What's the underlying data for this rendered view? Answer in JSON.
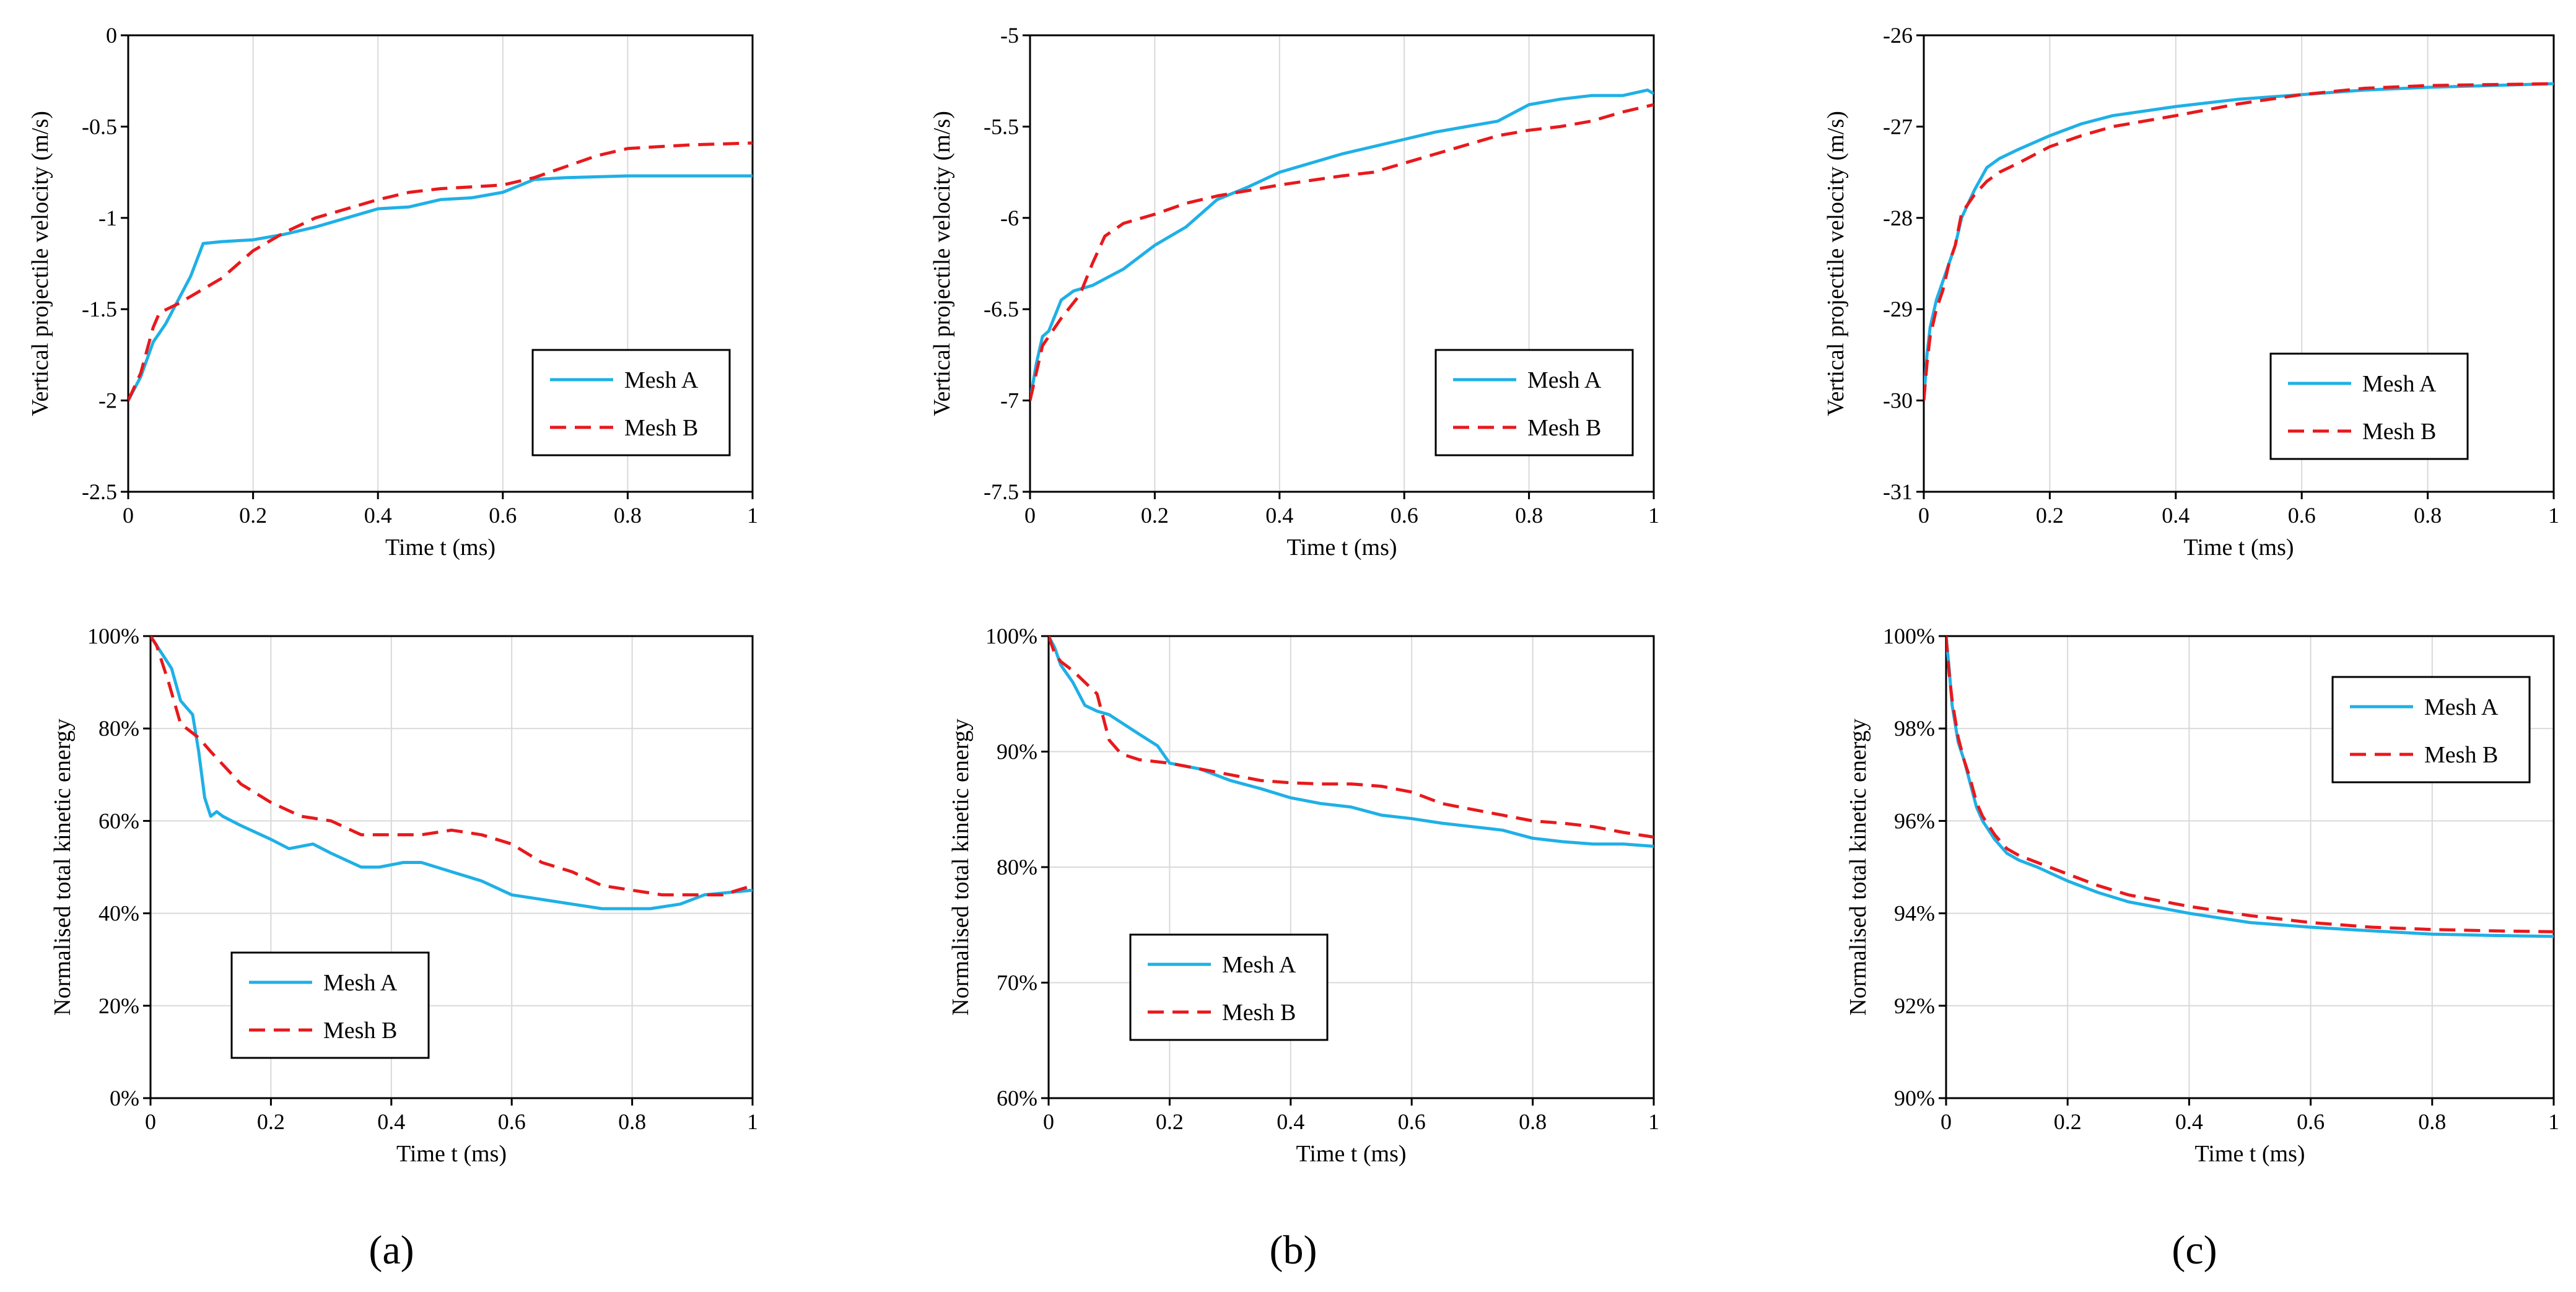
{
  "figure": {
    "panel_labels": [
      "(a)",
      "(b)",
      "(c)"
    ],
    "colors": {
      "mesh_a": "#1fb0e6",
      "mesh_b": "#e8191c",
      "grid": "#d9d9d9",
      "axis": "#000000"
    }
  },
  "chart_data": [
    {
      "id": "a-top",
      "type": "line",
      "xlabel": "Time t (ms)",
      "ylabel": "Vertical projectile velocity (m/s)",
      "xlim": [
        0,
        1
      ],
      "ylim": [
        -2.5,
        0
      ],
      "xticks": [
        0,
        0.2,
        0.4,
        0.6,
        0.8,
        1
      ],
      "xtick_labels": [
        "0",
        "0.2",
        "0.4",
        "0.6",
        "0.8",
        "1"
      ],
      "yticks": [
        0,
        -0.5,
        -1,
        -1.5,
        -2,
        -2.5
      ],
      "ytick_labels": [
        "0",
        "-0.5",
        "-1",
        "-1.5",
        "-2",
        "-2.5"
      ],
      "grid": "vertical",
      "legend_position": "bottom-right",
      "series": [
        {
          "name": "Mesh A",
          "style": "solid",
          "x": [
            0,
            0.02,
            0.04,
            0.06,
            0.08,
            0.1,
            0.12,
            0.15,
            0.2,
            0.25,
            0.3,
            0.35,
            0.4,
            0.45,
            0.5,
            0.55,
            0.6,
            0.65,
            0.7,
            0.8,
            0.9,
            1
          ],
          "y": [
            -2,
            -1.87,
            -1.68,
            -1.58,
            -1.45,
            -1.32,
            -1.14,
            -1.13,
            -1.12,
            -1.09,
            -1.05,
            -1,
            -0.95,
            -0.94,
            -0.9,
            -0.89,
            -0.86,
            -0.79,
            -0.78,
            -0.77,
            -0.77,
            -0.77
          ]
        },
        {
          "name": "Mesh B",
          "style": "dashed",
          "x": [
            0,
            0.02,
            0.04,
            0.05,
            0.08,
            0.1,
            0.15,
            0.2,
            0.25,
            0.3,
            0.35,
            0.4,
            0.45,
            0.5,
            0.55,
            0.6,
            0.65,
            0.7,
            0.75,
            0.8,
            0.85,
            0.9,
            1
          ],
          "y": [
            -2,
            -1.85,
            -1.6,
            -1.52,
            -1.47,
            -1.43,
            -1.33,
            -1.18,
            -1.08,
            -1,
            -0.95,
            -0.9,
            -0.86,
            -0.84,
            -0.83,
            -0.82,
            -0.78,
            -0.72,
            -0.66,
            -0.62,
            -0.61,
            -0.6,
            -0.59
          ]
        }
      ]
    },
    {
      "id": "b-top",
      "type": "line",
      "xlabel": "Time t (ms)",
      "ylabel": "Vertical projectile velocity (m/s)",
      "xlim": [
        0,
        1
      ],
      "ylim": [
        -7.5,
        -5
      ],
      "xticks": [
        0,
        0.2,
        0.4,
        0.6,
        0.8,
        1
      ],
      "xtick_labels": [
        "0",
        "0.2",
        "0.4",
        "0.6",
        "0.8",
        "1"
      ],
      "yticks": [
        -5,
        -5.5,
        -6,
        -6.5,
        -7,
        -7.5
      ],
      "ytick_labels": [
        "-5",
        "-5.5",
        "-6",
        "-6.5",
        "-7",
        "-7.5"
      ],
      "grid": "vertical",
      "legend_position": "bottom-right",
      "series": [
        {
          "name": "Mesh A",
          "style": "solid",
          "x": [
            0,
            0.01,
            0.02,
            0.03,
            0.05,
            0.07,
            0.1,
            0.15,
            0.2,
            0.25,
            0.3,
            0.35,
            0.4,
            0.5,
            0.6,
            0.65,
            0.7,
            0.75,
            0.8,
            0.85,
            0.9,
            0.95,
            0.99,
            1
          ],
          "y": [
            -7,
            -6.8,
            -6.65,
            -6.62,
            -6.45,
            -6.4,
            -6.37,
            -6.28,
            -6.15,
            -6.05,
            -5.9,
            -5.83,
            -5.75,
            -5.65,
            -5.57,
            -5.53,
            -5.5,
            -5.47,
            -5.38,
            -5.35,
            -5.33,
            -5.33,
            -5.3,
            -5.32
          ]
        },
        {
          "name": "Mesh B",
          "style": "dashed",
          "x": [
            0,
            0.02,
            0.03,
            0.05,
            0.08,
            0.1,
            0.12,
            0.15,
            0.2,
            0.25,
            0.3,
            0.35,
            0.4,
            0.5,
            0.55,
            0.6,
            0.65,
            0.7,
            0.75,
            0.8,
            0.85,
            0.9,
            0.95,
            1
          ],
          "y": [
            -7,
            -6.7,
            -6.65,
            -6.55,
            -6.42,
            -6.25,
            -6.1,
            -6.03,
            -5.98,
            -5.92,
            -5.88,
            -5.85,
            -5.82,
            -5.77,
            -5.75,
            -5.7,
            -5.65,
            -5.6,
            -5.55,
            -5.52,
            -5.5,
            -5.47,
            -5.42,
            -5.38
          ]
        }
      ]
    },
    {
      "id": "c-top",
      "type": "line",
      "xlabel": "Time t (ms)",
      "ylabel": "Vertical projectile velocity (m/s)",
      "xlim": [
        0,
        1
      ],
      "ylim": [
        -31,
        -26
      ],
      "xticks": [
        0,
        0.2,
        0.4,
        0.6,
        0.8,
        1
      ],
      "xtick_labels": [
        "0",
        "0.2",
        "0.4",
        "0.6",
        "0.8",
        "1"
      ],
      "yticks": [
        -26,
        -27,
        -28,
        -29,
        -30,
        -31
      ],
      "ytick_labels": [
        "-26",
        "-27",
        "-28",
        "-29",
        "-30",
        "-31"
      ],
      "grid": "vertical",
      "legend_position": "bottom-right",
      "series": [
        {
          "name": "Mesh A",
          "style": "solid",
          "x": [
            0,
            0.005,
            0.01,
            0.02,
            0.03,
            0.04,
            0.05,
            0.06,
            0.08,
            0.1,
            0.12,
            0.15,
            0.2,
            0.25,
            0.3,
            0.4,
            0.5,
            0.6,
            0.7,
            0.8,
            0.9,
            1
          ],
          "y": [
            -30,
            -29.5,
            -29.2,
            -28.9,
            -28.7,
            -28.5,
            -28.3,
            -28.0,
            -27.7,
            -27.45,
            -27.35,
            -27.25,
            -27.1,
            -26.97,
            -26.88,
            -26.78,
            -26.7,
            -26.65,
            -26.6,
            -26.57,
            -26.55,
            -26.53
          ]
        },
        {
          "name": "Mesh B",
          "style": "dashed",
          "x": [
            0,
            0.005,
            0.01,
            0.02,
            0.03,
            0.04,
            0.05,
            0.06,
            0.08,
            0.1,
            0.12,
            0.15,
            0.2,
            0.25,
            0.3,
            0.4,
            0.5,
            0.6,
            0.7,
            0.8,
            0.9,
            1
          ],
          "y": [
            -30,
            -29.6,
            -29.3,
            -29.0,
            -28.8,
            -28.5,
            -28.3,
            -27.95,
            -27.75,
            -27.6,
            -27.5,
            -27.4,
            -27.22,
            -27.1,
            -27.0,
            -26.88,
            -26.75,
            -26.65,
            -26.58,
            -26.55,
            -26.54,
            -26.53
          ]
        }
      ]
    },
    {
      "id": "a-bottom",
      "type": "line",
      "xlabel": "Time t (ms)",
      "ylabel": "Normalised total kinetic energy",
      "xlim": [
        0,
        1
      ],
      "ylim": [
        0,
        100
      ],
      "xticks": [
        0,
        0.2,
        0.4,
        0.6,
        0.8,
        1
      ],
      "xtick_labels": [
        "0",
        "0.2",
        "0.4",
        "0.6",
        "0.8",
        "1"
      ],
      "yticks": [
        100,
        80,
        60,
        40,
        20,
        0
      ],
      "ytick_labels": [
        "100%",
        "80%",
        "60%",
        "40%",
        "20%",
        "0%"
      ],
      "grid": "both",
      "legend_position": "bottom-left",
      "series": [
        {
          "name": "Mesh A",
          "style": "solid",
          "x": [
            0,
            0.02,
            0.035,
            0.05,
            0.07,
            0.08,
            0.09,
            0.1,
            0.11,
            0.12,
            0.15,
            0.2,
            0.23,
            0.27,
            0.3,
            0.35,
            0.38,
            0.42,
            0.45,
            0.5,
            0.55,
            0.6,
            0.65,
            0.7,
            0.75,
            0.8,
            0.83,
            0.88,
            0.92,
            1
          ],
          "y": [
            100,
            96,
            93,
            86,
            83,
            75,
            65,
            61,
            62,
            61,
            59,
            56,
            54,
            55,
            53,
            50,
            50,
            51,
            51,
            49,
            47,
            44,
            43,
            42,
            41,
            41,
            41,
            42,
            44,
            45
          ]
        },
        {
          "name": "Mesh B",
          "style": "dashed",
          "x": [
            0,
            0.01,
            0.03,
            0.05,
            0.08,
            0.1,
            0.15,
            0.2,
            0.25,
            0.3,
            0.35,
            0.4,
            0.45,
            0.5,
            0.55,
            0.6,
            0.65,
            0.7,
            0.75,
            0.8,
            0.85,
            0.9,
            0.95,
            1
          ],
          "y": [
            100,
            98,
            90,
            81,
            78,
            75,
            68,
            64,
            61,
            60,
            57,
            57,
            57,
            58,
            57,
            55,
            51,
            49,
            46,
            45,
            44,
            44,
            44,
            46
          ]
        }
      ]
    },
    {
      "id": "b-bottom",
      "type": "line",
      "xlabel": "Time t (ms)",
      "ylabel": "Normalised total kinetic energy",
      "xlim": [
        0,
        1
      ],
      "ylim": [
        60,
        100
      ],
      "xticks": [
        0,
        0.2,
        0.4,
        0.6,
        0.8,
        1
      ],
      "xtick_labels": [
        "0",
        "0.2",
        "0.4",
        "0.6",
        "0.8",
        "1"
      ],
      "yticks": [
        100,
        90,
        80,
        70,
        60
      ],
      "ytick_labels": [
        "100%",
        "90%",
        "80%",
        "70%",
        "60%"
      ],
      "grid": "both",
      "legend_position": "bottom-left",
      "series": [
        {
          "name": "Mesh A",
          "style": "solid",
          "x": [
            0,
            0.01,
            0.02,
            0.04,
            0.06,
            0.08,
            0.1,
            0.15,
            0.18,
            0.2,
            0.25,
            0.3,
            0.35,
            0.4,
            0.45,
            0.5,
            0.55,
            0.6,
            0.65,
            0.7,
            0.75,
            0.8,
            0.85,
            0.9,
            0.95,
            1
          ],
          "y": [
            100,
            99,
            97.5,
            96,
            94,
            93.5,
            93.2,
            91.5,
            90.5,
            89,
            88.5,
            87.5,
            86.8,
            86.0,
            85.5,
            85.2,
            84.5,
            84.2,
            83.8,
            83.5,
            83.2,
            82.5,
            82.2,
            82.0,
            82.0,
            81.8
          ]
        },
        {
          "name": "Mesh B",
          "style": "dashed",
          "x": [
            0,
            0.01,
            0.02,
            0.04,
            0.06,
            0.08,
            0.1,
            0.12,
            0.15,
            0.2,
            0.25,
            0.3,
            0.35,
            0.4,
            0.45,
            0.5,
            0.55,
            0.6,
            0.65,
            0.7,
            0.75,
            0.8,
            0.85,
            0.9,
            0.95,
            1
          ],
          "y": [
            100,
            98.5,
            97.8,
            97,
            96,
            95,
            91,
            89.8,
            89.3,
            89,
            88.5,
            88.0,
            87.5,
            87.3,
            87.2,
            87.2,
            87.0,
            86.5,
            85.5,
            85.0,
            84.5,
            84.0,
            83.8,
            83.5,
            83.0,
            82.6
          ]
        }
      ]
    },
    {
      "id": "c-bottom",
      "type": "line",
      "xlabel": "Time t (ms)",
      "ylabel": "Normalised total kinetic energy",
      "xlim": [
        0,
        1
      ],
      "ylim": [
        90,
        100
      ],
      "xticks": [
        0,
        0.2,
        0.4,
        0.6,
        0.8,
        1
      ],
      "xtick_labels": [
        "0",
        "0.2",
        "0.4",
        "0.6",
        "0.8",
        "1"
      ],
      "yticks": [
        100,
        98,
        96,
        94,
        92,
        90
      ],
      "ytick_labels": [
        "100%",
        "98%",
        "96%",
        "94%",
        "92%",
        "90%"
      ],
      "grid": "both",
      "legend_position": "top-right",
      "series": [
        {
          "name": "Mesh A",
          "style": "solid",
          "x": [
            0,
            0.005,
            0.01,
            0.02,
            0.03,
            0.04,
            0.05,
            0.06,
            0.08,
            0.1,
            0.12,
            0.15,
            0.2,
            0.25,
            0.3,
            0.4,
            0.5,
            0.6,
            0.7,
            0.8,
            0.9,
            1
          ],
          "y": [
            100,
            99.3,
            98.5,
            97.7,
            97.3,
            96.8,
            96.3,
            96.0,
            95.6,
            95.3,
            95.15,
            95.0,
            94.7,
            94.45,
            94.25,
            94.0,
            93.8,
            93.7,
            93.62,
            93.55,
            93.52,
            93.5
          ]
        },
        {
          "name": "Mesh B",
          "style": "dashed",
          "x": [
            0,
            0.005,
            0.01,
            0.02,
            0.03,
            0.04,
            0.05,
            0.06,
            0.08,
            0.1,
            0.12,
            0.15,
            0.2,
            0.25,
            0.3,
            0.4,
            0.5,
            0.6,
            0.7,
            0.8,
            0.9,
            1
          ],
          "y": [
            100,
            99.2,
            98.6,
            97.8,
            97.3,
            96.9,
            96.4,
            96.1,
            95.7,
            95.4,
            95.25,
            95.1,
            94.85,
            94.6,
            94.4,
            94.15,
            93.95,
            93.8,
            93.7,
            93.65,
            93.62,
            93.6
          ]
        }
      ]
    }
  ]
}
